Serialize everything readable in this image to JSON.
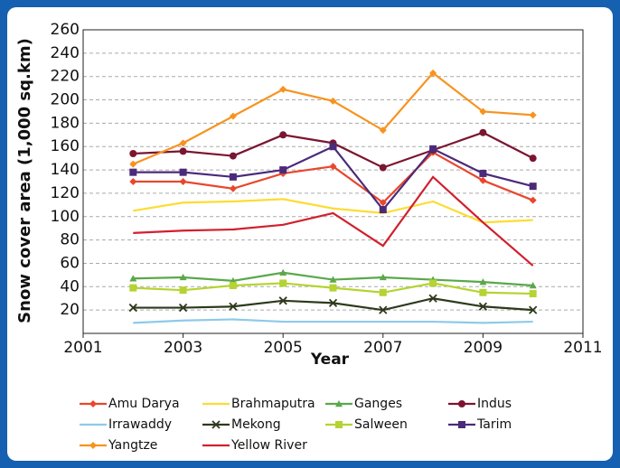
{
  "chart_data": {
    "type": "line",
    "x": [
      2002,
      2003,
      2004,
      2005,
      2006,
      2007,
      2008,
      2009,
      2010
    ],
    "xlabel": "Year",
    "ylabel": "Snow cover area (1,000 sq.km)",
    "xlim": [
      2001,
      2011
    ],
    "xticks": [
      2001,
      2003,
      2005,
      2007,
      2009,
      2011
    ],
    "ylim": [
      0,
      260
    ],
    "yticks": [
      20,
      40,
      60,
      80,
      100,
      120,
      140,
      160,
      180,
      200,
      220,
      240,
      260
    ],
    "grid": true,
    "legend": "bottom",
    "series": [
      {
        "name": "Amu Darya",
        "color": "#e8472e",
        "marker": "diamond",
        "values": [
          130,
          130,
          124,
          137,
          143,
          112,
          155,
          131,
          114
        ]
      },
      {
        "name": "Brahmaputra",
        "color": "#fddc34",
        "marker": "none",
        "values": [
          105,
          112,
          113,
          115,
          107,
          103,
          113,
          95,
          97
        ]
      },
      {
        "name": "Ganges",
        "color": "#5aa84a",
        "marker": "triangle",
        "values": [
          47,
          48,
          45,
          52,
          46,
          48,
          46,
          44,
          41
        ]
      },
      {
        "name": "Indus",
        "color": "#7b1530",
        "marker": "circle",
        "values": [
          154,
          156,
          152,
          170,
          163,
          142,
          157,
          172,
          150
        ]
      },
      {
        "name": "Irrawaddy",
        "color": "#8ecae8",
        "marker": "none",
        "values": [
          9,
          11,
          12,
          10,
          10,
          10,
          10,
          9,
          10
        ]
      },
      {
        "name": "Mekong",
        "color": "#2d3a1c",
        "marker": "x",
        "values": [
          22,
          22,
          23,
          28,
          26,
          20,
          30,
          23,
          20
        ]
      },
      {
        "name": "Salween",
        "color": "#b5d332",
        "marker": "square",
        "values": [
          39,
          37,
          41,
          43,
          39,
          35,
          43,
          35,
          34
        ]
      },
      {
        "name": "Tarim",
        "color": "#4b2a7a",
        "marker": "square",
        "values": [
          138,
          138,
          134,
          140,
          160,
          106,
          158,
          137,
          126
        ]
      },
      {
        "name": "Yangtze",
        "color": "#f7931e",
        "marker": "diamond",
        "values": [
          145,
          163,
          186,
          209,
          199,
          174,
          223,
          190,
          187
        ]
      },
      {
        "name": "Yellow River",
        "color": "#d1202e",
        "marker": "none",
        "values": [
          86,
          88,
          89,
          93,
          103,
          75,
          134,
          95,
          58
        ]
      }
    ]
  }
}
